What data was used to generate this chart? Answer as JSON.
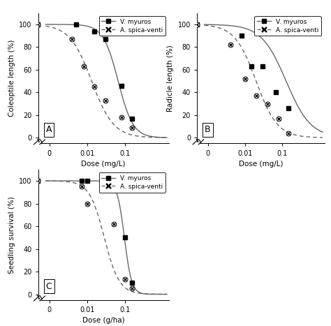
{
  "panel_A": {
    "title": "A",
    "ylabel": "Coleoptile length (%)",
    "xlabel": "Dose (mg/L)",
    "v_myuros_points_x": [
      0.0005,
      0.005,
      0.015,
      0.03,
      0.08,
      0.15
    ],
    "v_myuros_points_y": [
      100,
      100,
      94,
      87,
      46,
      17
    ],
    "a_spica_points_x": [
      0.0005,
      0.004,
      0.008,
      0.015,
      0.03,
      0.08,
      0.15
    ],
    "a_spica_points_y": [
      100,
      87,
      63,
      45,
      33,
      18,
      9
    ],
    "v_myuros_ec50": 0.065,
    "v_myuros_hill": 2.2,
    "a_spica_ec50": 0.013,
    "a_spica_hill": 1.5,
    "ylim": [
      -5,
      110
    ]
  },
  "panel_B": {
    "title": "B",
    "ylabel": "Radicle length (%)",
    "xlabel": "Dose (mg/L)",
    "v_myuros_points_x": [
      0.0005,
      0.008,
      0.015,
      0.03,
      0.07,
      0.15
    ],
    "v_myuros_points_y": [
      100,
      90,
      63,
      63,
      40,
      26
    ],
    "a_spica_points_x": [
      0.0005,
      0.004,
      0.01,
      0.02,
      0.04,
      0.08,
      0.15
    ],
    "a_spica_points_y": [
      100,
      82,
      52,
      37,
      30,
      17,
      4
    ],
    "v_myuros_ec50": 0.13,
    "v_myuros_hill": 1.3,
    "a_spica_ec50": 0.02,
    "a_spica_hill": 1.5,
    "ylim": [
      -5,
      110
    ]
  },
  "panel_C": {
    "title": "C",
    "ylabel": "Seedling survival (%)",
    "xlabel": "Dose (g/ha)",
    "v_myuros_points_x": [
      0.0005,
      0.007,
      0.01,
      0.05,
      0.1,
      0.15
    ],
    "v_myuros_points_y": [
      100,
      100,
      100,
      94,
      50,
      10
    ],
    "a_spica_points_x": [
      0.0005,
      0.007,
      0.01,
      0.05,
      0.1,
      0.15
    ],
    "a_spica_points_y": [
      100,
      95,
      80,
      62,
      13,
      5
    ],
    "v_myuros_ec50": 0.095,
    "v_myuros_hill": 4.5,
    "a_spica_ec50": 0.028,
    "a_spica_hill": 2.2,
    "ylim": [
      -5,
      110
    ]
  },
  "line_color": "#666666",
  "marker_size": 4,
  "legend_v": "V. myuros",
  "legend_a": "A. spica-venti",
  "bg_color": "#ffffff",
  "label_fontsize": 7.5,
  "tick_fontsize": 7
}
